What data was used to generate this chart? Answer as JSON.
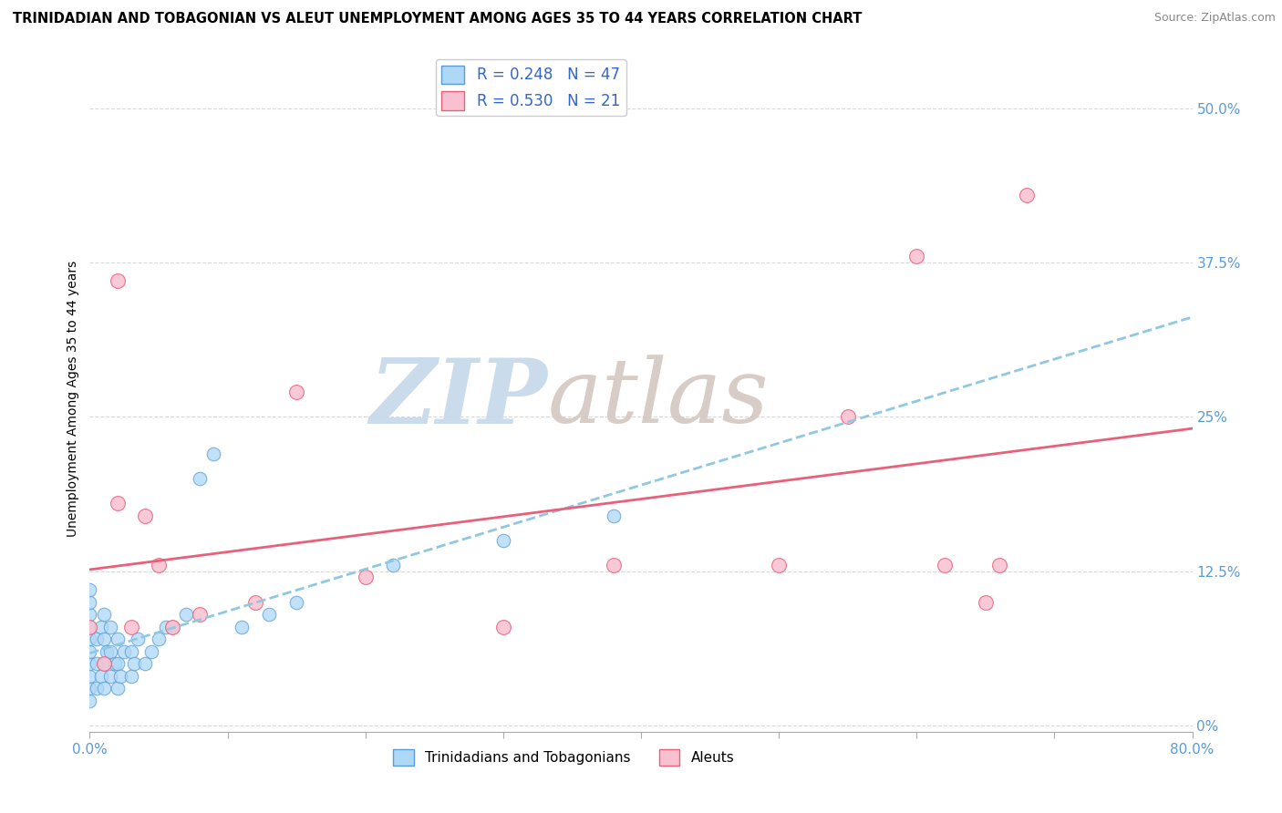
{
  "title": "TRINIDADIAN AND TOBAGONIAN VS ALEUT UNEMPLOYMENT AMONG AGES 35 TO 44 YEARS CORRELATION CHART",
  "source": "Source: ZipAtlas.com",
  "ylabel": "Unemployment Among Ages 35 to 44 years",
  "xlim": [
    0,
    0.8
  ],
  "ylim": [
    -0.005,
    0.535
  ],
  "xticks": [
    0.0,
    0.1,
    0.2,
    0.3,
    0.4,
    0.5,
    0.6,
    0.7,
    0.8
  ],
  "yticks": [
    0.0,
    0.125,
    0.25,
    0.375,
    0.5
  ],
  "R_blue": 0.248,
  "N_blue": 47,
  "R_pink": 0.53,
  "N_pink": 21,
  "blue_color": "#add8f7",
  "blue_edge": "#5b9bd5",
  "pink_color": "#f9c0d0",
  "pink_edge": "#e8607a",
  "trend_blue_color": "#90c8e0",
  "trend_pink_color": "#e8607a",
  "watermark_zip_color": "#c5d8ea",
  "watermark_atlas_color": "#d4c8c0",
  "background_color": "#ffffff",
  "grid_color": "#d8d8d8",
  "tick_color": "#5b9bd5",
  "blue_scatter_x": [
    0.0,
    0.0,
    0.0,
    0.0,
    0.0,
    0.0,
    0.0,
    0.0,
    0.0,
    0.0,
    0.005,
    0.005,
    0.005,
    0.008,
    0.008,
    0.01,
    0.01,
    0.01,
    0.01,
    0.012,
    0.015,
    0.015,
    0.015,
    0.018,
    0.02,
    0.02,
    0.02,
    0.022,
    0.025,
    0.03,
    0.03,
    0.032,
    0.035,
    0.04,
    0.045,
    0.05,
    0.055,
    0.06,
    0.07,
    0.08,
    0.09,
    0.11,
    0.13,
    0.15,
    0.22,
    0.3,
    0.38
  ],
  "blue_scatter_y": [
    0.02,
    0.03,
    0.04,
    0.05,
    0.06,
    0.07,
    0.08,
    0.09,
    0.1,
    0.11,
    0.03,
    0.05,
    0.07,
    0.04,
    0.08,
    0.03,
    0.05,
    0.07,
    0.09,
    0.06,
    0.04,
    0.06,
    0.08,
    0.05,
    0.03,
    0.05,
    0.07,
    0.04,
    0.06,
    0.04,
    0.06,
    0.05,
    0.07,
    0.05,
    0.06,
    0.07,
    0.08,
    0.08,
    0.09,
    0.2,
    0.22,
    0.08,
    0.09,
    0.1,
    0.13,
    0.15,
    0.17
  ],
  "pink_scatter_x": [
    0.0,
    0.01,
    0.02,
    0.02,
    0.03,
    0.04,
    0.05,
    0.06,
    0.08,
    0.12,
    0.15,
    0.2,
    0.3,
    0.38,
    0.5,
    0.55,
    0.6,
    0.62,
    0.65,
    0.66,
    0.68
  ],
  "pink_scatter_y": [
    0.08,
    0.05,
    0.18,
    0.36,
    0.08,
    0.17,
    0.13,
    0.08,
    0.09,
    0.1,
    0.27,
    0.12,
    0.08,
    0.13,
    0.13,
    0.25,
    0.38,
    0.13,
    0.1,
    0.13,
    0.43
  ]
}
